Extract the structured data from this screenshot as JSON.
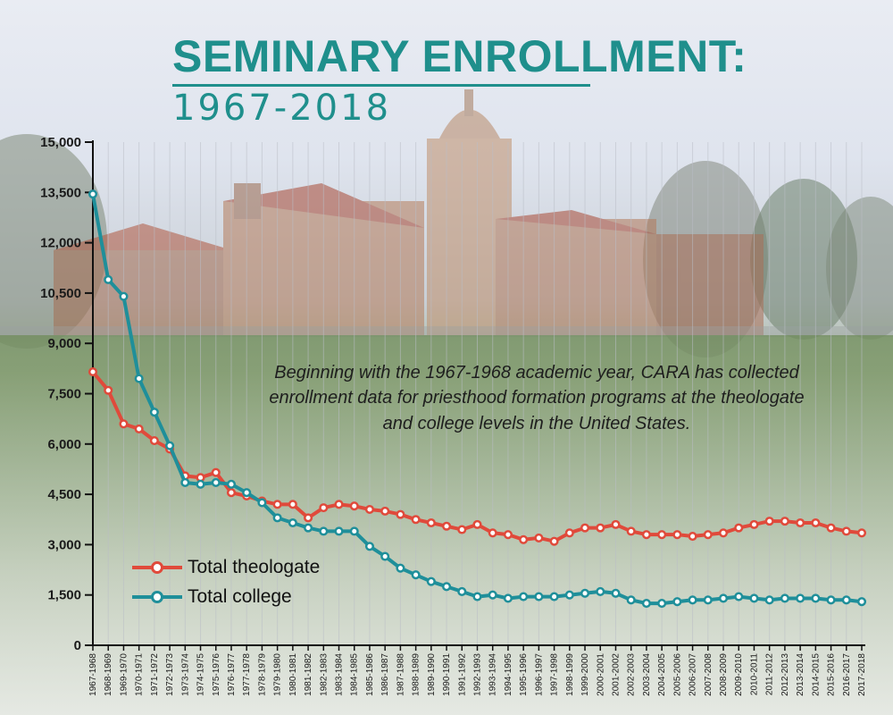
{
  "header": {
    "title": "SEMINARY ENROLLMENT:",
    "subtitle": "1967-2018"
  },
  "description": "Beginning with the 1967-1968 academic year, CARA has collected enrollment data for priesthood formation programs at the theologate and college levels in the United States.",
  "colors": {
    "title": "#1f8f8c",
    "theologate": "#e04a3b",
    "college": "#1f8f9a"
  },
  "chart_data": {
    "type": "line",
    "title": "SEMINARY ENROLLMENT: 1967-2018",
    "xlabel": "",
    "ylabel": "",
    "ylim": [
      0,
      15000
    ],
    "yticks": [
      0,
      1500,
      3000,
      4500,
      6000,
      7500,
      9000,
      10500,
      12000,
      13500,
      15000
    ],
    "ytick_labels": [
      "0",
      "1,500",
      "3,000",
      "4,500",
      "6,000",
      "7,500",
      "9,000",
      "10,500",
      "12,000",
      "13,500",
      "15,000"
    ],
    "grid": true,
    "legend_position": "bottom-left",
    "categories": [
      "1967-1968",
      "1968-1969",
      "1969-1970",
      "1970-1971",
      "1971-1972",
      "1972-1973",
      "1973-1974",
      "1974-1975",
      "1975-1976",
      "1976-1977",
      "1977-1978",
      "1978-1979",
      "1979-1980",
      "1980-1981",
      "1981-1982",
      "1982-1983",
      "1983-1984",
      "1984-1985",
      "1985-1986",
      "1986-1987",
      "1987-1988",
      "1988-1989",
      "1989-1990",
      "1990-1991",
      "1991-1992",
      "1992-1993",
      "1993-1994",
      "1994-1995",
      "1995-1996",
      "1996-1997",
      "1997-1998",
      "1998-1999",
      "1999-2000",
      "2000-2001",
      "2001-2002",
      "2002-2003",
      "2003-2004",
      "2004-2005",
      "2005-2006",
      "2006-2007",
      "2007-2008",
      "2008-2009",
      "2009-2010",
      "2010-2011",
      "2011-2012",
      "2012-2013",
      "2013-2014",
      "2014-2015",
      "2015-2016",
      "2016-2017",
      "2017-2018"
    ],
    "series": [
      {
        "name": "Total theologate",
        "values": [
          8150,
          7600,
          6600,
          6450,
          6100,
          5850,
          5050,
          5000,
          5150,
          4550,
          4450,
          4300,
          4200,
          4200,
          3800,
          4100,
          4200,
          4150,
          4050,
          4000,
          3900,
          3750,
          3650,
          3550,
          3450,
          3600,
          3350,
          3300,
          3150,
          3200,
          3100,
          3350,
          3500,
          3500,
          3600,
          3400,
          3300,
          3300,
          3300,
          3250,
          3300,
          3350,
          3500,
          3600,
          3700,
          3700,
          3650,
          3650,
          3500,
          3400,
          3350
        ]
      },
      {
        "name": "Total college",
        "values": [
          13450,
          10900,
          10400,
          7950,
          6950,
          5950,
          4850,
          4800,
          4850,
          4800,
          4550,
          4250,
          3800,
          3650,
          3500,
          3400,
          3400,
          3400,
          2950,
          2650,
          2300,
          2100,
          1900,
          1750,
          1600,
          1450,
          1500,
          1400,
          1450,
          1450,
          1450,
          1500,
          1550,
          1600,
          1550,
          1350,
          1250,
          1250,
          1300,
          1350,
          1350,
          1400,
          1450,
          1400,
          1350,
          1400,
          1400,
          1400,
          1350,
          1350,
          1300
        ]
      }
    ]
  }
}
